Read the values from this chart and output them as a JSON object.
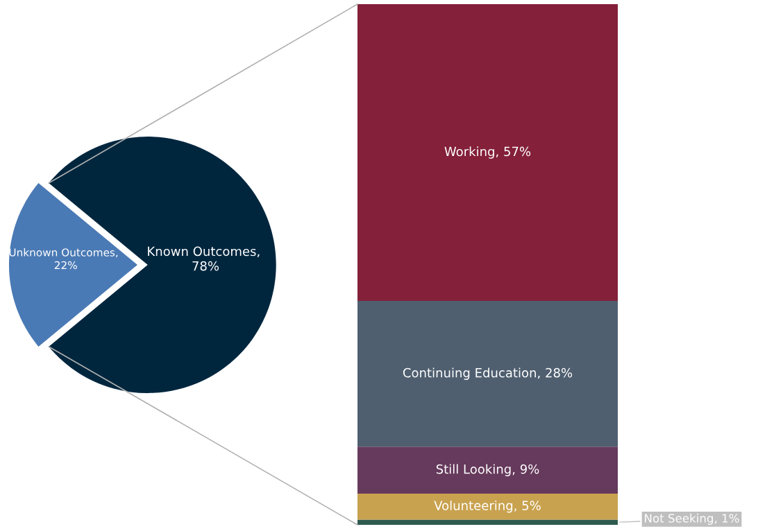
{
  "chart_data": [
    {
      "type": "pie",
      "categories": [
        "Unknown Outcomes",
        "Known Outcomes"
      ],
      "values": [
        22,
        78
      ],
      "colors": [
        "#4a7ab5",
        "#00263e"
      ],
      "value_labels": [
        ", 22%",
        ", 78%"
      ]
    },
    {
      "type": "bar",
      "stacked": true,
      "categories": [
        null
      ],
      "series": [
        {
          "color": "#2e5a4f",
          "values": [
            1
          ],
          "value_labels": [
            "Not Seeking, 1%"
          ]
        },
        {
          "color": "#c9a24f",
          "values": [
            5
          ],
          "value_labels": [
            "Volunteering, 5%"
          ]
        },
        {
          "color": "#663a5c",
          "values": [
            9
          ],
          "value_labels": [
            "Still Looking, 9%"
          ]
        },
        {
          "color": "#4f5f70",
          "values": [
            28
          ],
          "value_labels": [
            "Continuing Education, 28%"
          ]
        },
        {
          "color": "#84203a",
          "values": [
            57
          ],
          "value_labels": [
            "Working, 57%"
          ]
        }
      ]
    }
  ]
}
